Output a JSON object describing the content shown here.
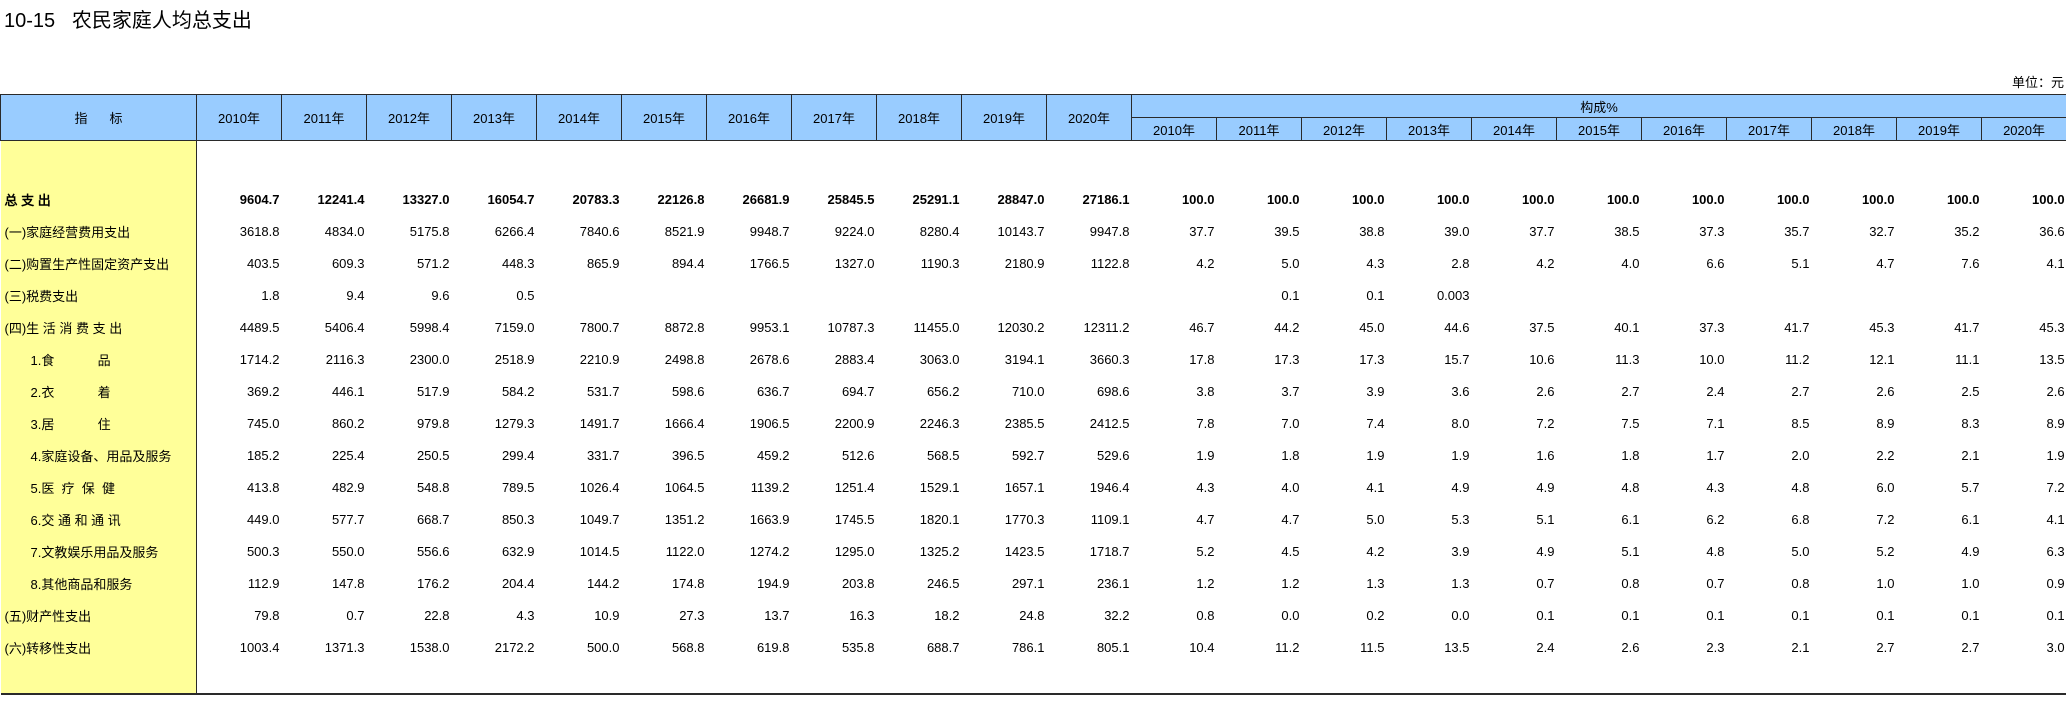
{
  "title": "10-15   农民家庭人均总支出",
  "unit": "单位：元",
  "header": {
    "indicator": "指标",
    "years": [
      "2010年",
      "2011年",
      "2012年",
      "2013年",
      "2014年",
      "2015年",
      "2016年",
      "2017年",
      "2018年",
      "2019年",
      "2020年"
    ],
    "composition": "构成%"
  },
  "rows": [
    {
      "label": "总 支 出",
      "bold": true,
      "sub": false,
      "values": [
        "9604.7",
        "12241.4",
        "13327.0",
        "16054.7",
        "20783.3",
        "22126.8",
        "26681.9",
        "25845.5",
        "25291.1",
        "28847.0",
        "27186.1"
      ],
      "pct": [
        "100.0",
        "100.0",
        "100.0",
        "100.0",
        "100.0",
        "100.0",
        "100.0",
        "100.0",
        "100.0",
        "100.0",
        "100.0"
      ]
    },
    {
      "label": "(一)家庭经营费用支出",
      "bold": false,
      "sub": false,
      "values": [
        "3618.8",
        "4834.0",
        "5175.8",
        "6266.4",
        "7840.6",
        "8521.9",
        "9948.7",
        "9224.0",
        "8280.4",
        "10143.7",
        "9947.8"
      ],
      "pct": [
        "37.7",
        "39.5",
        "38.8",
        "39.0",
        "37.7",
        "38.5",
        "37.3",
        "35.7",
        "32.7",
        "35.2",
        "36.6"
      ]
    },
    {
      "label": "(二)购置生产性固定资产支出",
      "bold": false,
      "sub": false,
      "values": [
        "403.5",
        "609.3",
        "571.2",
        "448.3",
        "865.9",
        "894.4",
        "1766.5",
        "1327.0",
        "1190.3",
        "2180.9",
        "1122.8"
      ],
      "pct": [
        "4.2",
        "5.0",
        "4.3",
        "2.8",
        "4.2",
        "4.0",
        "6.6",
        "5.1",
        "4.7",
        "7.6",
        "4.1"
      ]
    },
    {
      "label": "(三)税费支出",
      "bold": false,
      "sub": false,
      "values": [
        "1.8",
        "9.4",
        "9.6",
        "0.5",
        "",
        "",
        "",
        "",
        "",
        "",
        ""
      ],
      "pct": [
        "",
        "0.1",
        "0.1",
        "0.003",
        "",
        "",
        "",
        "",
        "",
        "",
        ""
      ]
    },
    {
      "label": "(四)生 活 消 费 支 出",
      "bold": false,
      "sub": false,
      "values": [
        "4489.5",
        "5406.4",
        "5998.4",
        "7159.0",
        "7800.7",
        "8872.8",
        "9953.1",
        "10787.3",
        "11455.0",
        "12030.2",
        "12311.2"
      ],
      "pct": [
        "46.7",
        "44.2",
        "45.0",
        "44.6",
        "37.5",
        "40.1",
        "37.3",
        "41.7",
        "45.3",
        "41.7",
        "45.3"
      ]
    },
    {
      "label": "1.食            品",
      "bold": false,
      "sub": true,
      "values": [
        "1714.2",
        "2116.3",
        "2300.0",
        "2518.9",
        "2210.9",
        "2498.8",
        "2678.6",
        "2883.4",
        "3063.0",
        "3194.1",
        "3660.3"
      ],
      "pct": [
        "17.8",
        "17.3",
        "17.3",
        "15.7",
        "10.6",
        "11.3",
        "10.0",
        "11.2",
        "12.1",
        "11.1",
        "13.5"
      ]
    },
    {
      "label": "2.衣            着",
      "bold": false,
      "sub": true,
      "values": [
        "369.2",
        "446.1",
        "517.9",
        "584.2",
        "531.7",
        "598.6",
        "636.7",
        "694.7",
        "656.2",
        "710.0",
        "698.6"
      ],
      "pct": [
        "3.8",
        "3.7",
        "3.9",
        "3.6",
        "2.6",
        "2.7",
        "2.4",
        "2.7",
        "2.6",
        "2.5",
        "2.6"
      ]
    },
    {
      "label": "3.居            住",
      "bold": false,
      "sub": true,
      "values": [
        "745.0",
        "860.2",
        "979.8",
        "1279.3",
        "1491.7",
        "1666.4",
        "1906.5",
        "2200.9",
        "2246.3",
        "2385.5",
        "2412.5"
      ],
      "pct": [
        "7.8",
        "7.0",
        "7.4",
        "8.0",
        "7.2",
        "7.5",
        "7.1",
        "8.5",
        "8.9",
        "8.3",
        "8.9"
      ]
    },
    {
      "label": "4.家庭设备、用品及服务",
      "bold": false,
      "sub": true,
      "values": [
        "185.2",
        "225.4",
        "250.5",
        "299.4",
        "331.7",
        "396.5",
        "459.2",
        "512.6",
        "568.5",
        "592.7",
        "529.6"
      ],
      "pct": [
        "1.9",
        "1.8",
        "1.9",
        "1.9",
        "1.6",
        "1.8",
        "1.7",
        "2.0",
        "2.2",
        "2.1",
        "1.9"
      ]
    },
    {
      "label": "5.医  疗  保  健",
      "bold": false,
      "sub": true,
      "values": [
        "413.8",
        "482.9",
        "548.8",
        "789.5",
        "1026.4",
        "1064.5",
        "1139.2",
        "1251.4",
        "1529.1",
        "1657.1",
        "1946.4"
      ],
      "pct": [
        "4.3",
        "4.0",
        "4.1",
        "4.9",
        "4.9",
        "4.8",
        "4.3",
        "4.8",
        "6.0",
        "5.7",
        "7.2"
      ]
    },
    {
      "label": "6.交 通 和 通 讯",
      "bold": false,
      "sub": true,
      "values": [
        "449.0",
        "577.7",
        "668.7",
        "850.3",
        "1049.7",
        "1351.2",
        "1663.9",
        "1745.5",
        "1820.1",
        "1770.3",
        "1109.1"
      ],
      "pct": [
        "4.7",
        "4.7",
        "5.0",
        "5.3",
        "5.1",
        "6.1",
        "6.2",
        "6.8",
        "7.2",
        "6.1",
        "4.1"
      ]
    },
    {
      "label": "7.文教娱乐用品及服务",
      "bold": false,
      "sub": true,
      "values": [
        "500.3",
        "550.0",
        "556.6",
        "632.9",
        "1014.5",
        "1122.0",
        "1274.2",
        "1295.0",
        "1325.2",
        "1423.5",
        "1718.7"
      ],
      "pct": [
        "5.2",
        "4.5",
        "4.2",
        "3.9",
        "4.9",
        "5.1",
        "4.8",
        "5.0",
        "5.2",
        "4.9",
        "6.3"
      ]
    },
    {
      "label": "8.其他商品和服务",
      "bold": false,
      "sub": true,
      "values": [
        "112.9",
        "147.8",
        "176.2",
        "204.4",
        "144.2",
        "174.8",
        "194.9",
        "203.8",
        "246.5",
        "297.1",
        "236.1"
      ],
      "pct": [
        "1.2",
        "1.2",
        "1.3",
        "1.3",
        "0.7",
        "0.8",
        "0.7",
        "0.8",
        "1.0",
        "1.0",
        "0.9"
      ]
    },
    {
      "label": "(五)财产性支出",
      "bold": false,
      "sub": false,
      "values": [
        "79.8",
        "0.7",
        "22.8",
        "4.3",
        "10.9",
        "27.3",
        "13.7",
        "16.3",
        "18.2",
        "24.8",
        "32.2"
      ],
      "pct": [
        "0.8",
        "0.0",
        "0.2",
        "0.0",
        "0.1",
        "0.1",
        "0.1",
        "0.1",
        "0.1",
        "0.1",
        "0.1"
      ]
    },
    {
      "label": "(六)转移性支出",
      "bold": false,
      "sub": false,
      "values": [
        "1003.4",
        "1371.3",
        "1538.0",
        "2172.2",
        "500.0",
        "568.8",
        "619.8",
        "535.8",
        "688.7",
        "786.1",
        "805.1"
      ],
      "pct": [
        "10.4",
        "11.2",
        "11.5",
        "13.5",
        "2.4",
        "2.6",
        "2.3",
        "2.1",
        "2.7",
        "2.7",
        "3.0"
      ]
    }
  ]
}
